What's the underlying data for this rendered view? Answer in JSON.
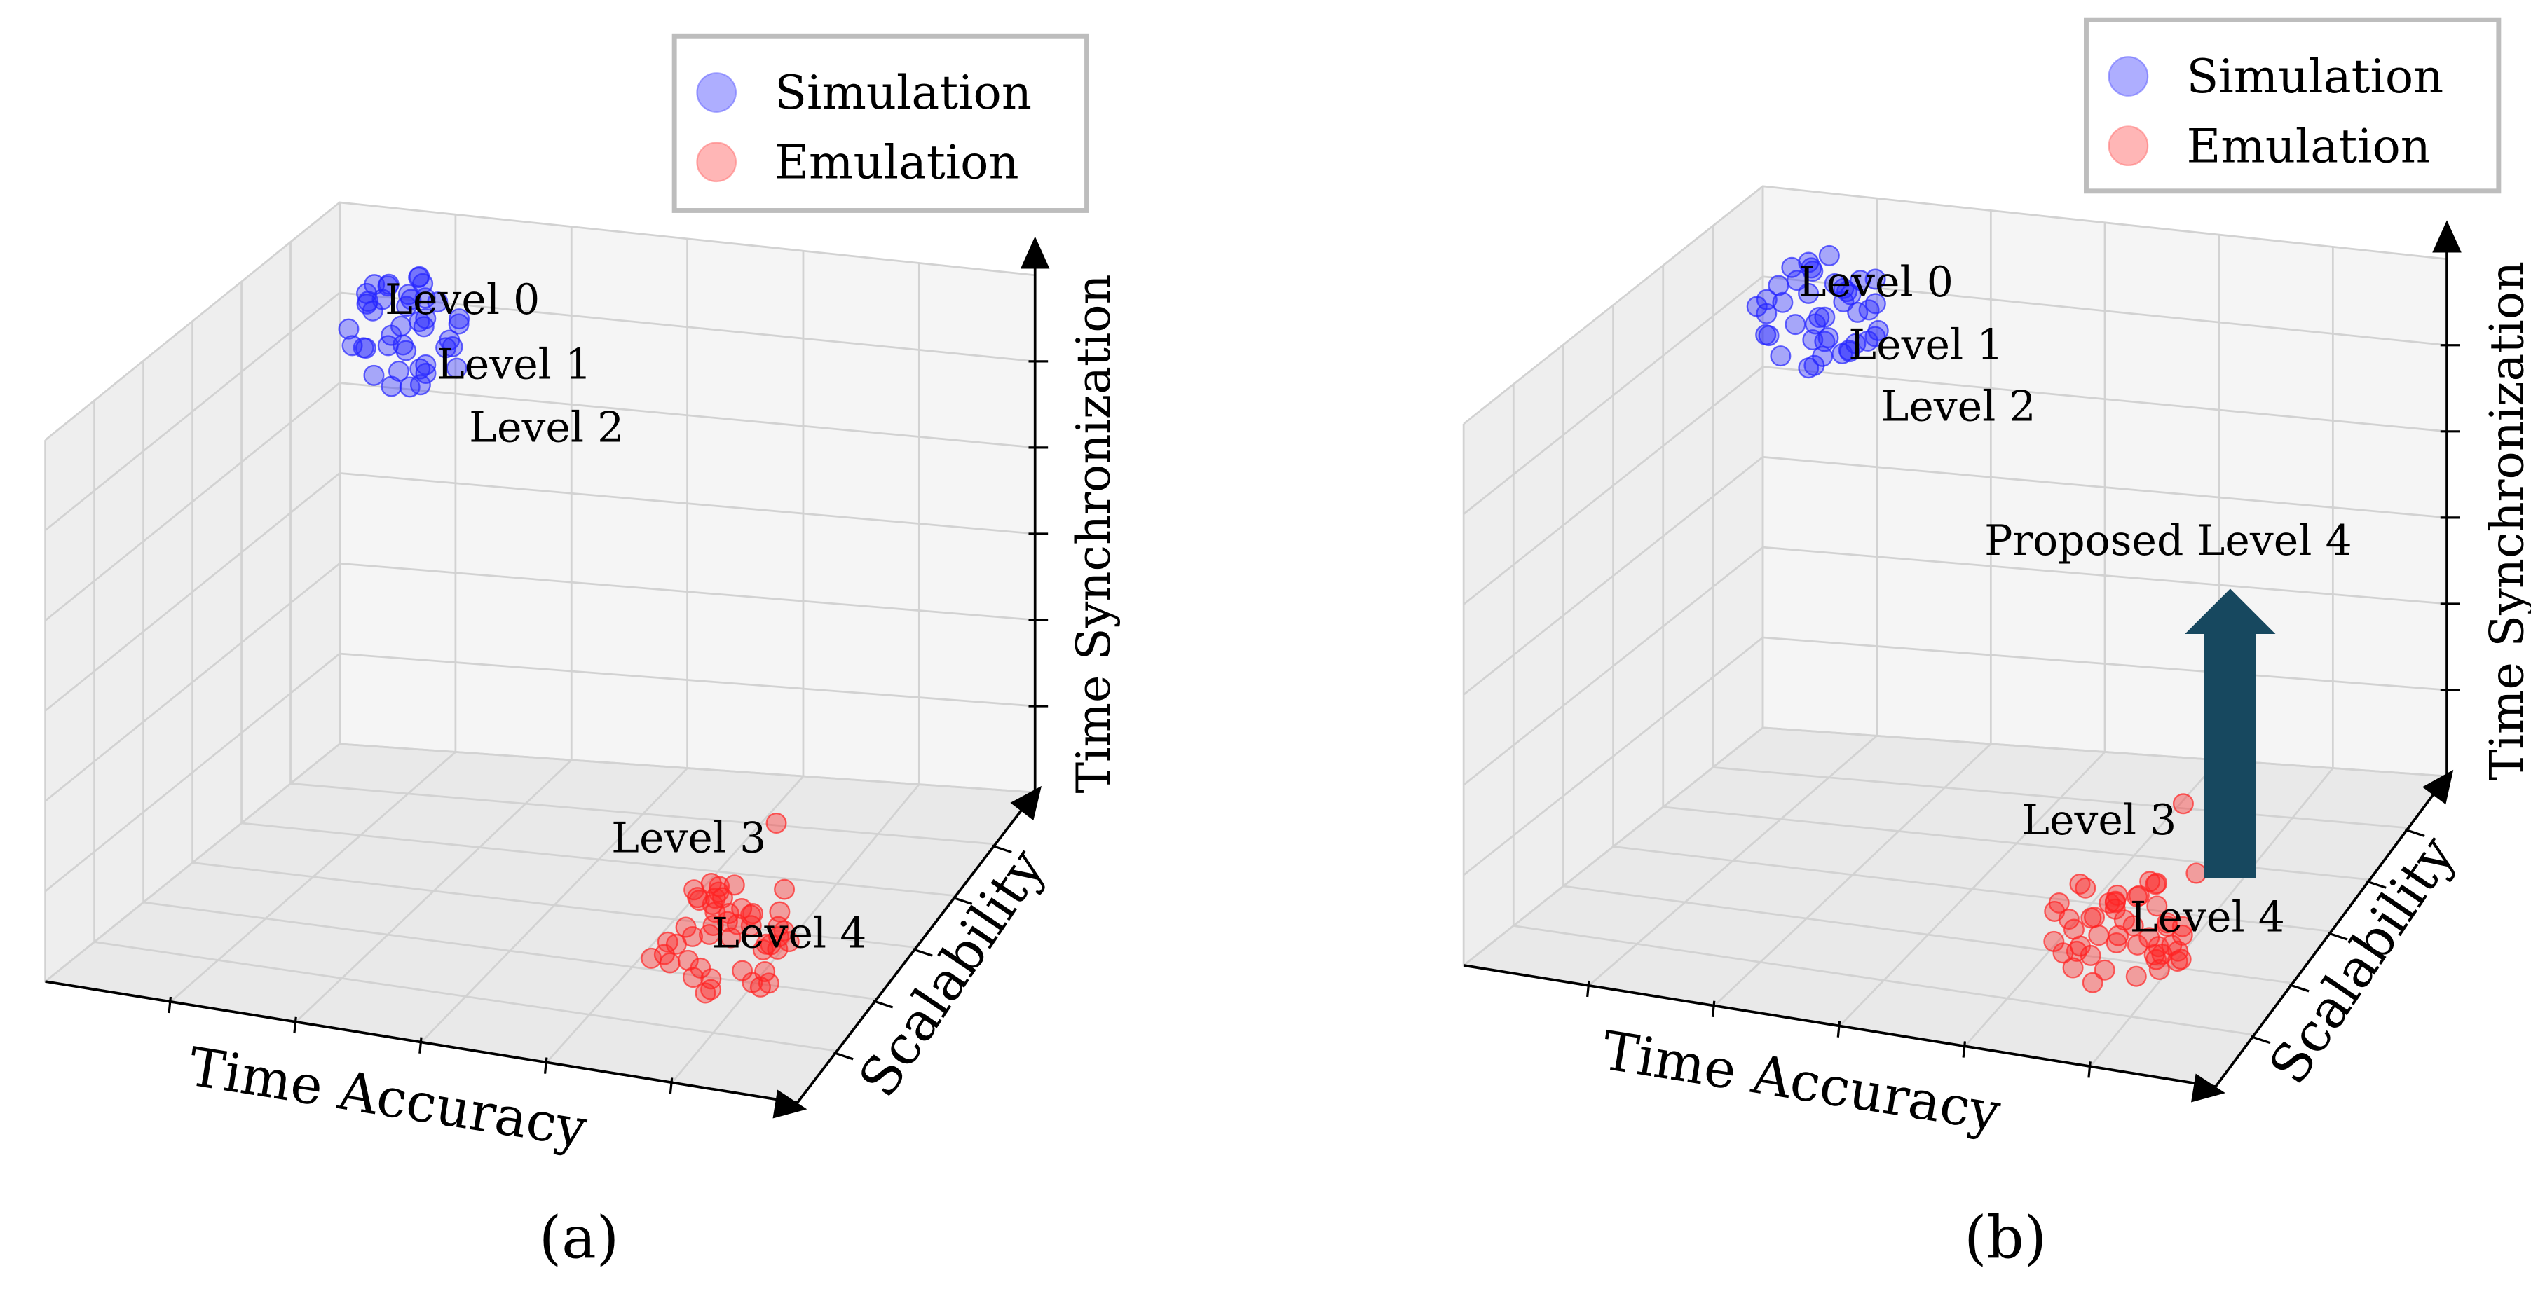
{
  "chart_data": [
    {
      "type": "scatter3d",
      "panel_label": "(a)",
      "axes": {
        "x": "Time Accuracy",
        "y": "Scalability",
        "z": "Time Synchronization"
      },
      "legend": [
        {
          "label": "Simulation",
          "color": "#6b6bff"
        },
        {
          "label": "Emulation",
          "color": "#ff7a7a"
        }
      ],
      "legend_position": "top-right",
      "series": [
        {
          "name": "Simulation",
          "color": "#2424ff",
          "cluster": "upper-left",
          "point_count": 42
        },
        {
          "name": "Emulation",
          "color": "#ff2222",
          "cluster": "lower-right",
          "point_count": 48
        }
      ],
      "annotations": [
        "Level 0",
        "Level 1",
        "Level 2",
        "Level 3",
        "Level 4"
      ],
      "grid": true
    },
    {
      "type": "scatter3d",
      "panel_label": "(b)",
      "axes": {
        "x": "Time Accuracy",
        "y": "Scalability",
        "z": "Time Synchronization"
      },
      "legend": [
        {
          "label": "Simulation",
          "color": "#6b6bff"
        },
        {
          "label": "Emulation",
          "color": "#ff7a7a"
        }
      ],
      "legend_position": "top-right",
      "series": [
        {
          "name": "Simulation",
          "color": "#2424ff",
          "cluster": "upper-left",
          "point_count": 42
        },
        {
          "name": "Emulation",
          "color": "#ff2222",
          "cluster": "lower-right",
          "point_count": 48
        }
      ],
      "annotations": [
        "Level 0",
        "Level 1",
        "Level 2",
        "Level 3",
        "Level 4",
        "Proposed Level 4"
      ],
      "proposed_arrow": {
        "from": "Level 4",
        "to": "Proposed Level 4",
        "direction": "up",
        "color": "#17485f"
      },
      "grid": true
    }
  ]
}
